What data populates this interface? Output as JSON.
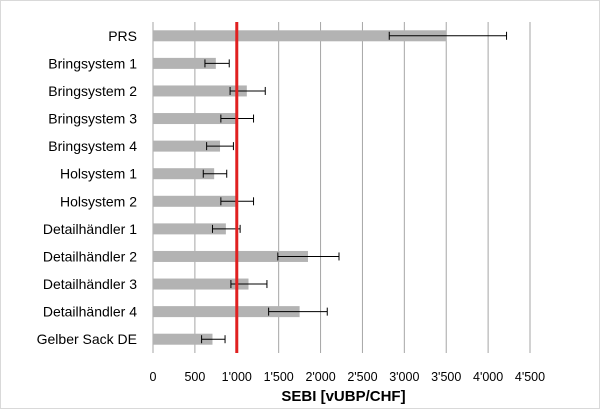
{
  "chart_data": {
    "type": "bar",
    "orientation": "horizontal",
    "categories": [
      "PRS",
      "Bringsystem 1",
      "Bringsystem 2",
      "Bringsystem 3",
      "Bringsystem 4",
      "Holsystem 1",
      "Holsystem 2",
      "Detailhändler 1",
      "Detailhändler 2",
      "Detailhändler 3",
      "Detailhändler 4",
      "Gelber Sack DE"
    ],
    "values": [
      3500,
      750,
      1120,
      1000,
      800,
      730,
      1000,
      870,
      1850,
      1140,
      1750,
      710
    ],
    "error_low": [
      2820,
      620,
      920,
      810,
      640,
      600,
      810,
      710,
      1490,
      930,
      1380,
      580
    ],
    "error_high": [
      4220,
      910,
      1340,
      1200,
      960,
      880,
      1200,
      1040,
      2220,
      1360,
      2080,
      860
    ],
    "reference_line": 1000,
    "xlim": [
      0,
      4500
    ],
    "xticks": [
      0,
      500,
      1000,
      1500,
      2000,
      2500,
      3000,
      3500,
      4000,
      4500
    ],
    "xtick_labels": [
      "0",
      "500",
      "1'000",
      "1'500",
      "2'000",
      "2'500",
      "3'000",
      "3'500",
      "4'000",
      "4'500"
    ],
    "xlabel": "SEBI [vUBP/CHF]",
    "grid": "vertical",
    "colors": {
      "bar": "#b3b3b3",
      "reference_line": "#e02020",
      "grid": "#a6a6a6",
      "error_bar": "#000000"
    }
  }
}
